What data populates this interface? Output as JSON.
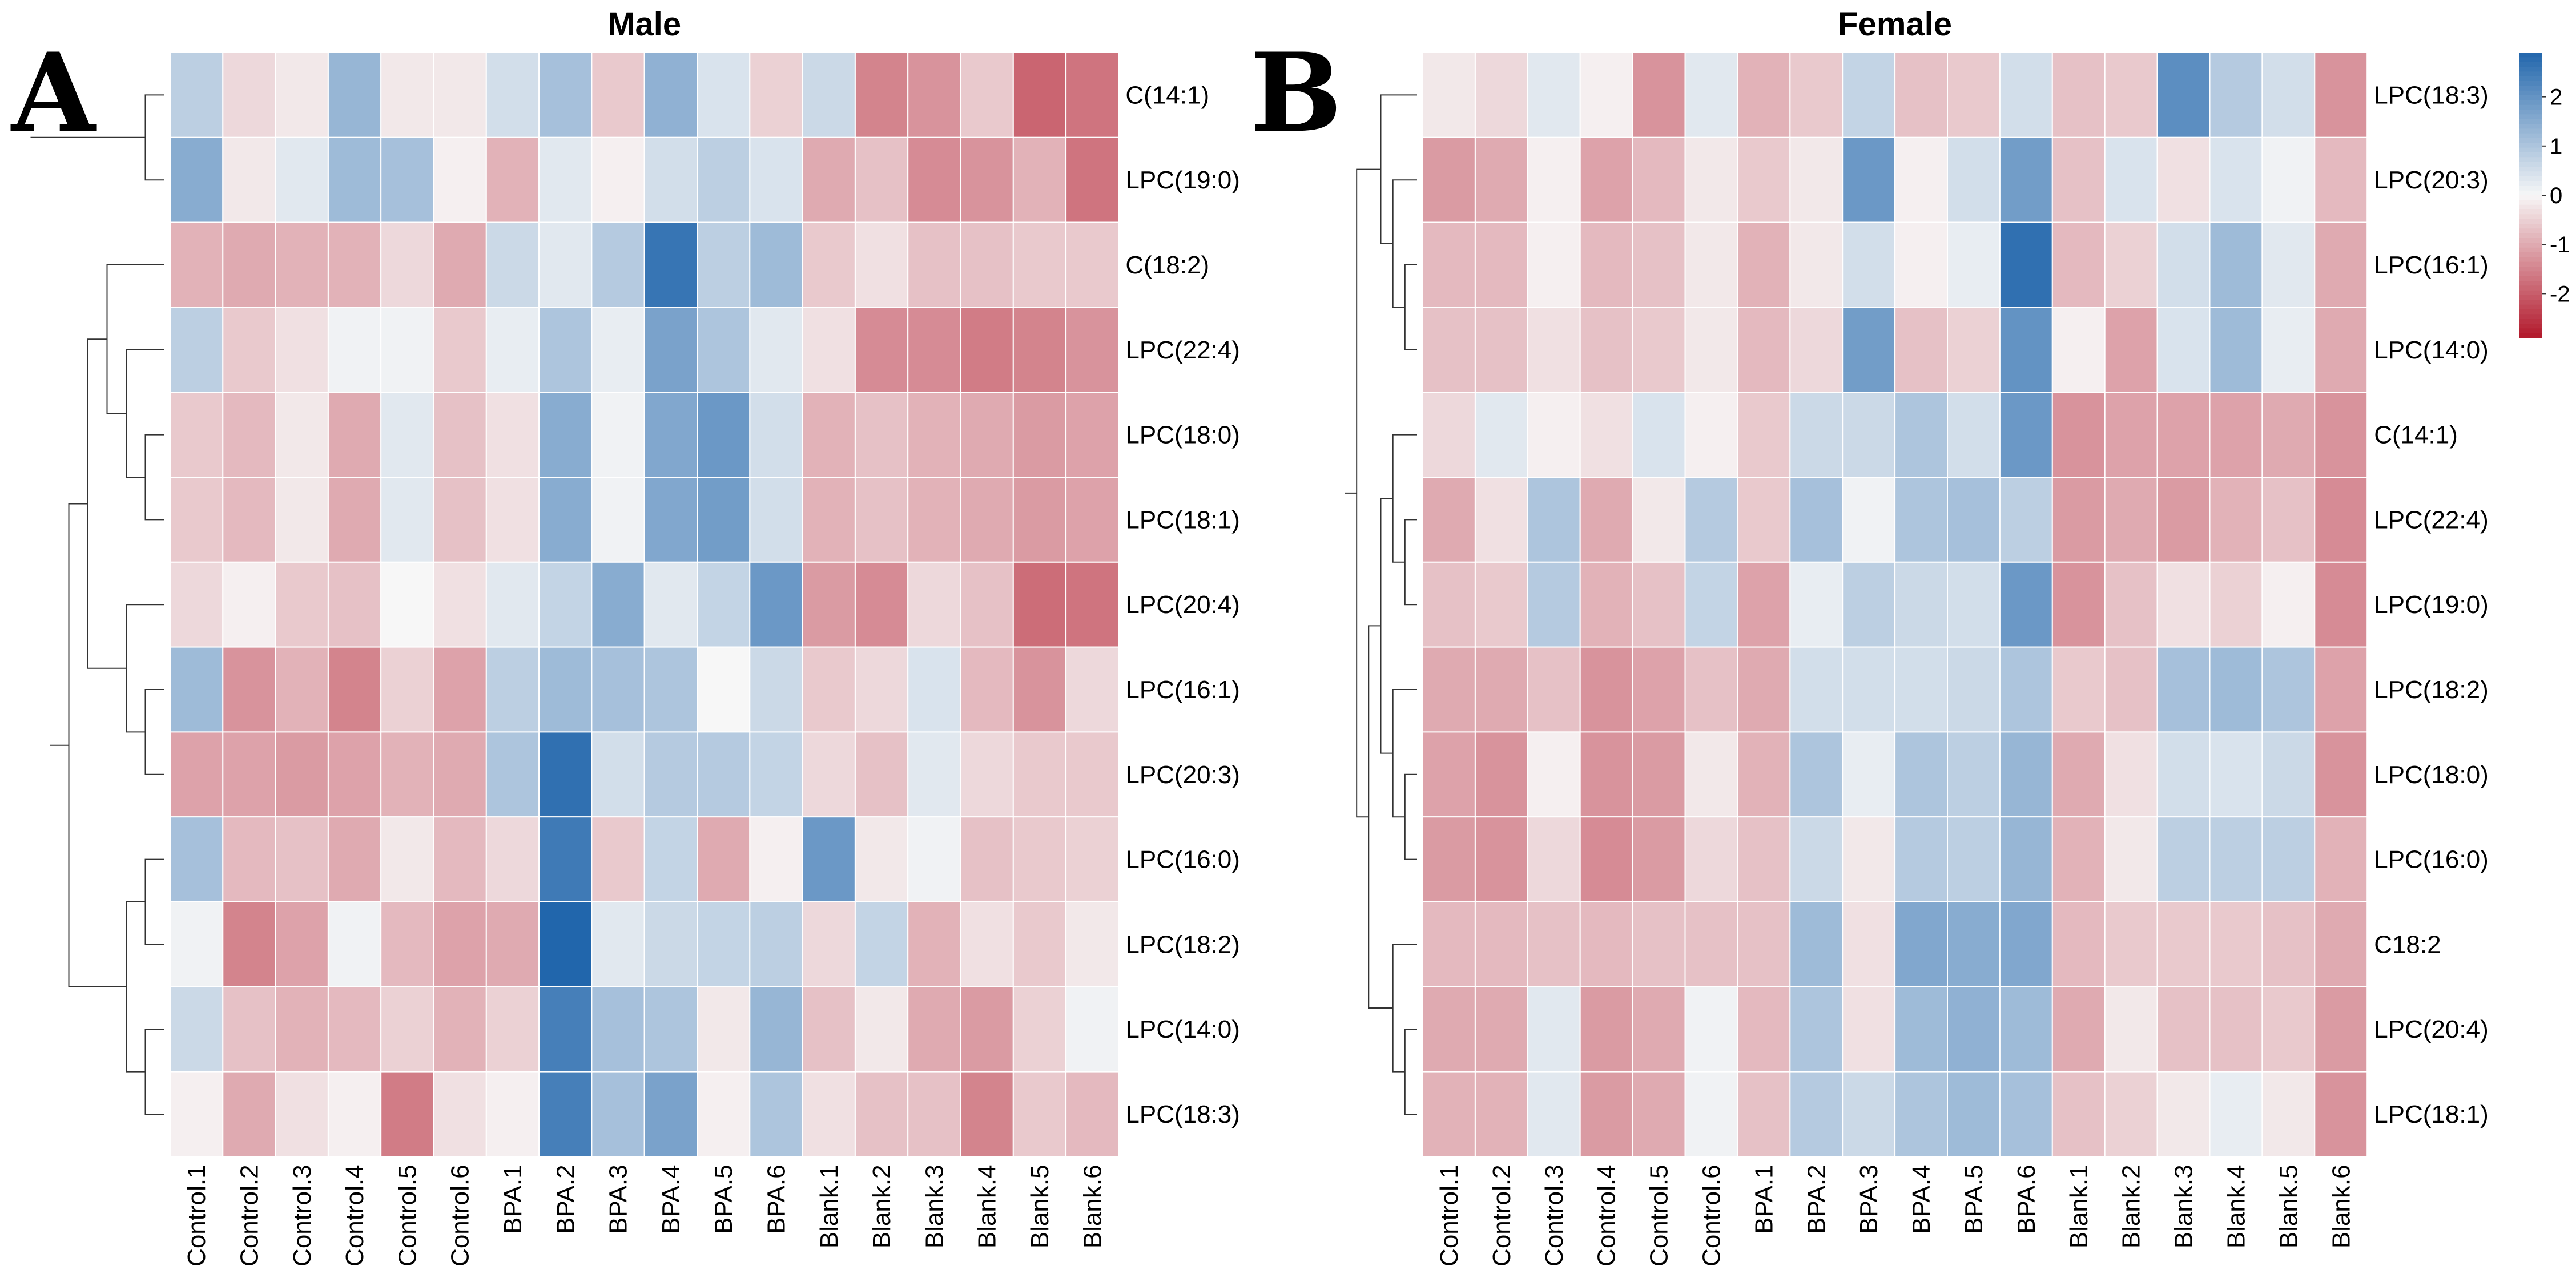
{
  "chart_data": [
    {
      "type": "heatmap",
      "panel_label": "A",
      "title": "Male",
      "columns": [
        "Control.1",
        "Control.2",
        "Control.3",
        "Control.4",
        "Control.5",
        "Control.6",
        "BPA.1",
        "BPA.2",
        "BPA.3",
        "BPA.4",
        "BPA.5",
        "BPA.6",
        "Blank.1",
        "Blank.2",
        "Blank.3",
        "Blank.4",
        "Blank.5",
        "Blank.6"
      ],
      "rows": [
        "C(14:1)",
        "LPC(19:0)",
        "C(18:2)",
        "LPC(22:4)",
        "LPC(18:0)",
        "LPC(18:1)",
        "LPC(20:4)",
        "LPC(16:1)",
        "LPC(20:3)",
        "LPC(16:0)",
        "LPC(18:2)",
        "LPC(14:0)",
        "LPC(18:3)"
      ],
      "values": [
        [
          0.8,
          -0.4,
          -0.2,
          1.3,
          -0.2,
          -0.2,
          0.5,
          1.1,
          -0.6,
          1.4,
          0.4,
          -0.5,
          0.6,
          -1.5,
          -1.3,
          -0.6,
          -1.9,
          -1.7
        ],
        [
          1.5,
          -0.2,
          0.3,
          1.2,
          1.1,
          -0.1,
          -0.9,
          0.3,
          -0.1,
          0.5,
          0.8,
          0.4,
          -1.0,
          -0.7,
          -1.4,
          -1.3,
          -0.9,
          -1.7
        ],
        [
          -0.9,
          -1.0,
          -0.9,
          -0.9,
          -0.4,
          -1.0,
          0.6,
          0.3,
          0.9,
          2.6,
          0.8,
          1.2,
          -0.6,
          -0.3,
          -0.7,
          -0.7,
          -0.6,
          -0.6
        ],
        [
          0.8,
          -0.6,
          -0.3,
          0.1,
          0.1,
          -0.6,
          0.2,
          1.0,
          0.2,
          1.7,
          1.0,
          0.3,
          -0.3,
          -1.4,
          -1.4,
          -1.6,
          -1.5,
          -1.3
        ],
        [
          -0.6,
          -0.8,
          -0.2,
          -1.0,
          0.3,
          -0.7,
          -0.3,
          1.5,
          0.1,
          1.6,
          1.9,
          0.5,
          -0.9,
          -0.7,
          -0.9,
          -1.0,
          -1.2,
          -1.1
        ],
        [
          -0.6,
          -0.8,
          -0.2,
          -1.0,
          0.3,
          -0.7,
          -0.3,
          1.5,
          0.1,
          1.6,
          1.8,
          0.5,
          -0.9,
          -0.7,
          -0.9,
          -1.0,
          -1.2,
          -1.1
        ],
        [
          -0.4,
          -0.1,
          -0.6,
          -0.7,
          0.0,
          -0.3,
          0.3,
          0.7,
          1.5,
          0.3,
          0.7,
          1.9,
          -1.2,
          -1.4,
          -0.4,
          -0.7,
          -1.8,
          -1.7
        ],
        [
          1.2,
          -1.3,
          -0.9,
          -1.5,
          -0.5,
          -1.1,
          0.8,
          1.2,
          1.1,
          1.0,
          0.0,
          0.6,
          -0.6,
          -0.4,
          0.4,
          -0.8,
          -1.3,
          -0.4
        ],
        [
          -1.1,
          -1.1,
          -1.2,
          -1.1,
          -0.9,
          -1.0,
          1.0,
          2.7,
          0.5,
          0.9,
          0.9,
          0.7,
          -0.4,
          -0.7,
          0.3,
          -0.4,
          -0.6,
          -0.6
        ],
        [
          1.1,
          -0.8,
          -0.7,
          -1.0,
          -0.2,
          -0.8,
          -0.4,
          2.5,
          -0.6,
          0.7,
          -1.0,
          -0.1,
          1.9,
          -0.2,
          0.1,
          -0.7,
          -0.6,
          -0.5
        ],
        [
          0.1,
          -1.5,
          -1.1,
          0.1,
          -0.8,
          -1.1,
          -1.0,
          2.9,
          0.3,
          0.6,
          0.7,
          0.8,
          -0.4,
          0.7,
          -0.9,
          -0.3,
          -0.6,
          -0.2
        ],
        [
          0.6,
          -0.7,
          -0.9,
          -0.8,
          -0.5,
          -0.9,
          -0.5,
          2.4,
          1.1,
          1.0,
          -0.2,
          1.3,
          -0.7,
          -0.2,
          -1.0,
          -1.2,
          -0.5,
          0.1
        ],
        [
          -0.1,
          -1.0,
          -0.3,
          -0.1,
          -1.6,
          -0.3,
          -0.1,
          2.4,
          1.1,
          1.7,
          -0.1,
          1.0,
          -0.3,
          -0.7,
          -0.7,
          -1.5,
          -0.6,
          -0.8
        ]
      ]
    },
    {
      "type": "heatmap",
      "panel_label": "B",
      "title": "Female",
      "columns": [
        "Control.1",
        "Control.2",
        "Control.3",
        "Control.4",
        "Control.5",
        "Control.6",
        "BPA.1",
        "BPA.2",
        "BPA.3",
        "BPA.4",
        "BPA.5",
        "BPA.6",
        "Blank.1",
        "Blank.2",
        "Blank.3",
        "Blank.4",
        "Blank.5",
        "Blank.6"
      ],
      "rows": [
        "LPC(18:3)",
        "LPC(20:3)",
        "LPC(16:1)",
        "LPC(14:0)",
        "C(14:1)",
        "LPC(22:4)",
        "LPC(19:0)",
        "LPC(18:2)",
        "LPC(18:0)",
        "LPC(16:0)",
        "C18:2",
        "LPC(20:4)",
        "LPC(18:1)"
      ],
      "values": [
        [
          -0.2,
          -0.4,
          0.3,
          -0.1,
          -1.3,
          0.3,
          -0.9,
          -0.6,
          0.7,
          -0.7,
          -0.6,
          0.5,
          -0.7,
          -0.6,
          2.1,
          0.9,
          0.5,
          -1.3
        ],
        [
          -1.2,
          -1.0,
          -0.1,
          -1.1,
          -0.8,
          -0.2,
          -0.6,
          -0.2,
          1.9,
          -0.1,
          0.5,
          1.8,
          -0.7,
          0.4,
          -0.3,
          0.4,
          0.1,
          -0.8
        ],
        [
          -0.8,
          -0.8,
          -0.1,
          -0.8,
          -0.7,
          -0.2,
          -0.9,
          -0.2,
          0.5,
          -0.1,
          0.2,
          2.7,
          -0.8,
          -0.5,
          0.5,
          1.2,
          0.3,
          -1.0
        ],
        [
          -0.7,
          -0.7,
          -0.3,
          -0.7,
          -0.6,
          -0.2,
          -0.8,
          -0.4,
          1.8,
          -0.7,
          -0.5,
          2.0,
          -0.1,
          -1.1,
          0.4,
          1.2,
          0.2,
          -1.0
        ],
        [
          -0.4,
          0.3,
          -0.1,
          -0.3,
          0.4,
          -0.1,
          -0.6,
          0.6,
          0.6,
          1.0,
          0.5,
          1.9,
          -1.3,
          -1.1,
          -1.1,
          -1.1,
          -1.0,
          -1.3
        ],
        [
          -1.0,
          -0.3,
          1.0,
          -1.0,
          -0.2,
          0.9,
          -0.6,
          1.1,
          0.1,
          1.0,
          1.1,
          0.8,
          -1.2,
          -1.0,
          -1.2,
          -0.9,
          -0.7,
          -1.4
        ],
        [
          -0.7,
          -0.6,
          0.9,
          -0.9,
          -0.7,
          0.7,
          -1.1,
          0.2,
          0.8,
          0.6,
          0.5,
          1.9,
          -1.3,
          -0.7,
          -0.3,
          -0.5,
          -0.1,
          -1.4
        ],
        [
          -1.0,
          -1.0,
          -0.7,
          -1.3,
          -1.1,
          -0.7,
          -1.0,
          0.5,
          0.5,
          0.5,
          0.6,
          1.0,
          -0.6,
          -0.7,
          1.1,
          1.2,
          1.0,
          -1.1
        ],
        [
          -1.1,
          -1.3,
          -0.1,
          -1.3,
          -1.2,
          -0.2,
          -0.9,
          1.0,
          0.2,
          1.0,
          0.8,
          1.3,
          -1.0,
          -0.3,
          0.5,
          0.4,
          0.6,
          -1.3
        ],
        [
          -1.2,
          -1.3,
          -0.4,
          -1.4,
          -1.2,
          -0.4,
          -0.7,
          0.6,
          -0.2,
          0.9,
          0.8,
          1.3,
          -0.9,
          -0.2,
          0.8,
          0.8,
          0.8,
          -0.9
        ],
        [
          -0.8,
          -0.8,
          -0.7,
          -0.8,
          -0.7,
          -0.7,
          -0.7,
          1.2,
          -0.3,
          1.6,
          1.5,
          1.6,
          -0.8,
          -0.6,
          -0.6,
          -0.6,
          -0.7,
          -1.0
        ],
        [
          -1.0,
          -1.0,
          0.3,
          -1.2,
          -1.0,
          0.1,
          -0.8,
          1.0,
          -0.3,
          1.2,
          1.4,
          1.2,
          -1.0,
          -0.2,
          -0.7,
          -0.7,
          -0.6,
          -1.2
        ],
        [
          -0.9,
          -0.9,
          0.3,
          -1.2,
          -1.0,
          0.1,
          -0.7,
          0.9,
          0.6,
          1.0,
          1.2,
          1.1,
          -0.7,
          -0.5,
          -0.2,
          0.2,
          -0.2,
          -1.3
        ]
      ]
    }
  ],
  "legend": {
    "ticks": [
      "2",
      "1",
      "0",
      "-1",
      "-2"
    ],
    "tick_values": [
      2,
      1,
      0,
      -1,
      -2
    ],
    "range": [
      -2.9,
      2.9
    ],
    "colors": {
      "high": "#2166ac",
      "mid": "#f7f7f7",
      "low": "#b2182b"
    }
  }
}
